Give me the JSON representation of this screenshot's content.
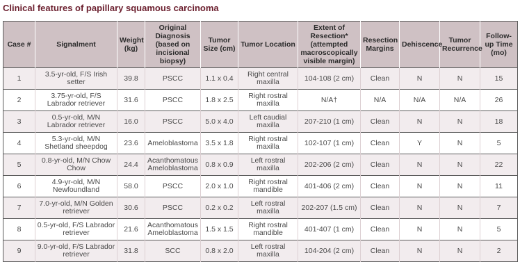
{
  "title": "Clinical features of papillary squamous carcinoma",
  "headers": [
    "Case #",
    "Signalment",
    "Weight (kg)",
    "Original Diagnosis (based on incisional biopsy)",
    "Tumor Size (cm)",
    "Tumor Location",
    "Extent of Resection* (attempted macroscopically visible margin)",
    "Resection Margins",
    "Dehiscence",
    "Tumor Recurrence",
    "Follow-up Time (mo)"
  ],
  "rows": [
    [
      "1",
      "3.5-yr-old, F/S Irish setter",
      "39.8",
      "PSCC",
      "1.1 x 0.4",
      "Right central maxilla",
      "104-108 (2 cm)",
      "Clean",
      "N",
      "N",
      "15"
    ],
    [
      "2",
      "3.75-yr-old, F/S Labrador retriever",
      "31.6",
      "PSCC",
      "1.8 x 2.5",
      "Right rostral maxilla",
      "N/A†",
      "N/A",
      "N/A",
      "N/A",
      "26"
    ],
    [
      "3",
      "0.5-yr-old, M/N Labrador retriever",
      "16.0",
      "PSCC",
      "5.0 x 4.0",
      "Left caudial maxilla",
      "207-210 (1 cm)",
      "Clean",
      "N",
      "N",
      "18"
    ],
    [
      "4",
      "5.3-yr-old, M/N Shetland sheepdog",
      "23.6",
      "Ameloblastoma",
      "3.5 x 1.8",
      "Right rostral maxilla",
      "102-107 (1 cm)",
      "Clean",
      "Y",
      "N",
      "5"
    ],
    [
      "5",
      "0.8-yr-old, M/N Chow Chow",
      "24.4",
      "Acanthomatous Ameloblastoma",
      "0.8 x 0.9",
      "Left rostral maxilla",
      "202-206 (2 cm)",
      "Clean",
      "N",
      "N",
      "22"
    ],
    [
      "6",
      "4.9-yr-old, M/N Newfoundland",
      "58.0",
      "PSCC",
      "2.0 x 1.0",
      "Right rostral mandible",
      "401-406 (2 cm)",
      "Clean",
      "N",
      "N",
      "11"
    ],
    [
      "7",
      "7.0-yr-old, M/N Golden retriever",
      "30.6",
      "PSCC",
      "0.2 x 0.2",
      "Left rostral maxilla",
      "202-207 (1.5 cm)",
      "Clean",
      "N",
      "N",
      "7"
    ],
    [
      "8",
      "0.5-yr-old, F/S Labrador retriever",
      "21.6",
      "Acanthomatous Ameloblastoma",
      "1.5 x 1.5",
      "Right rostral mandible",
      "401-407 (1 cm)",
      "Clean",
      "N",
      "N",
      "5"
    ],
    [
      "9",
      "9.0-yr-old, F/S Labrador retriever",
      "31.8",
      "SCC",
      "0.8 x 2.0",
      "Left rostral maxilla",
      "104-204 (2 cm)",
      "Clean",
      "N",
      "N",
      "2"
    ]
  ]
}
